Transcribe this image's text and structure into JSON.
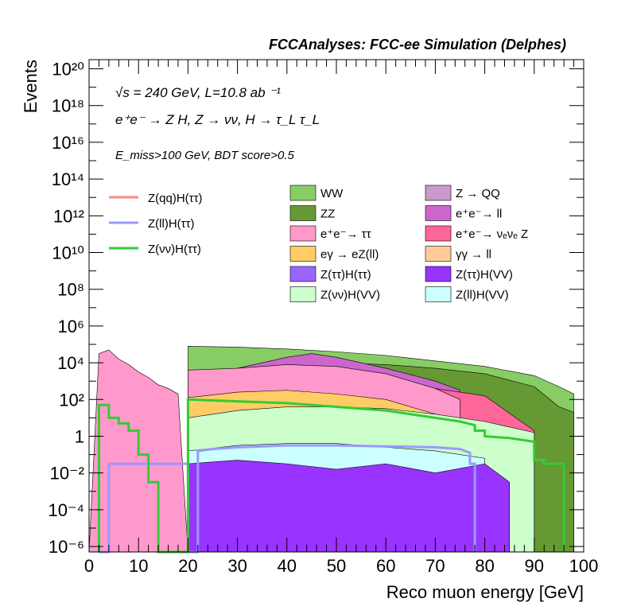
{
  "title": "FCCAnalyses: FCC-ee Simulation (Delphes)",
  "info": {
    "line1": "√s = 240 GeV, L=10.8 ab ⁻¹",
    "line2": "e⁺e⁻ → Z H, Z → νν, H → τ_L τ_L",
    "line3": "E_miss>100 GeV, BDT score>0.5"
  },
  "chart_data": {
    "type": "area",
    "xlabel": "Reco muon energy [GeV]",
    "ylabel": "Events",
    "xlim": [
      0,
      100
    ],
    "ylim_log10": [
      -6.3,
      20.5
    ],
    "log_y": true,
    "x_tick_labels": [
      "0",
      "10",
      "20",
      "30",
      "40",
      "50",
      "60",
      "70",
      "80",
      "90",
      "100"
    ],
    "y_tick_labels": [
      {
        "log": -6,
        "text": "10⁻⁶"
      },
      {
        "log": -4,
        "text": "10⁻⁴"
      },
      {
        "log": -2,
        "text": "10⁻²"
      },
      {
        "log": 0,
        "text": "1"
      },
      {
        "log": 2,
        "text": "10²"
      },
      {
        "log": 4,
        "text": "10⁴"
      },
      {
        "log": 6,
        "text": "10⁶"
      },
      {
        "log": 8,
        "text": "10⁸"
      },
      {
        "log": 10,
        "text": "10¹⁰"
      },
      {
        "log": 12,
        "text": "10¹²"
      },
      {
        "log": 14,
        "text": "10¹⁴"
      },
      {
        "log": 16,
        "text": "10¹⁶"
      },
      {
        "log": 18,
        "text": "10¹⁸"
      },
      {
        "log": 20,
        "text": "10²⁰"
      }
    ],
    "stack_bands": [
      {
        "name": "WW",
        "color": "#88cc66",
        "x": [
          20,
          30,
          40,
          50,
          60,
          70,
          80,
          90,
          95,
          98
        ],
        "top_log10": [
          4.9,
          4.85,
          4.75,
          4.6,
          4.4,
          4.1,
          3.8,
          3.3,
          2.7,
          2.3
        ]
      },
      {
        "name": "ZZ",
        "color": "#669933",
        "x": [
          20,
          30,
          40,
          50,
          60,
          70,
          80,
          90,
          95,
          98
        ],
        "top_log10": [
          3.3,
          3.7,
          3.9,
          4.0,
          3.9,
          3.7,
          3.4,
          2.7,
          1.6,
          1.3
        ]
      },
      {
        "name": "e⁺e⁻→ ll",
        "color": "#cc66cc",
        "x": [
          20,
          30,
          40,
          45,
          50,
          60,
          70,
          75
        ],
        "top_log10": [
          3.3,
          3.7,
          4.3,
          4.5,
          4.3,
          3.7,
          3.0,
          2.5
        ]
      },
      {
        "name": "e⁺e⁻→ νₑνₑ Z",
        "color": "#ff6699",
        "x": [
          20,
          30,
          40,
          50,
          60,
          70,
          80,
          90
        ],
        "top_log10": [
          2.6,
          2.8,
          2.9,
          2.9,
          2.8,
          2.6,
          2.2,
          0.3
        ]
      },
      {
        "name": "e⁺e⁻→ ττ",
        "color": "#ff99cc",
        "x": [
          20,
          30,
          40,
          50,
          60,
          70,
          75
        ],
        "top_log10": [
          3.6,
          3.7,
          3.9,
          3.8,
          3.4,
          2.6,
          2.0
        ]
      },
      {
        "name": "eγ → eZ(ll)",
        "color": "#ffcc66",
        "x": [
          20,
          30,
          40,
          50,
          60,
          70,
          72
        ],
        "top_log10": [
          2.1,
          2.4,
          2.5,
          2.3,
          2.0,
          1.2,
          1.0
        ]
      },
      {
        "name": "Z(νν)H(VV)",
        "color": "#ccffcc",
        "x": [
          20,
          30,
          40,
          50,
          60,
          70,
          80,
          90
        ],
        "top_log10": [
          1.0,
          1.4,
          1.6,
          1.6,
          1.5,
          1.2,
          0.8,
          0.2
        ]
      },
      {
        "name": "Z(ll)H(VV)",
        "color": "#ccffff",
        "x": [
          20,
          30,
          40,
          50,
          60,
          70,
          80
        ],
        "top_log10": [
          -0.8,
          -0.5,
          -0.4,
          -0.4,
          -0.6,
          -0.8,
          -1.2
        ]
      },
      {
        "name": "Z(ττ)H(VV)",
        "color": "#9933ff",
        "x": [
          20,
          30,
          40,
          50,
          60,
          70,
          80,
          85
        ],
        "top_log10": [
          -1.5,
          -1.3,
          -1.5,
          -1.8,
          -1.5,
          -2.0,
          -1.5,
          -2.5
        ]
      }
    ],
    "low_region": {
      "x": [
        0,
        2,
        4,
        6,
        8,
        10,
        12,
        14,
        16,
        18,
        20
      ],
      "top_log10": [
        -6.3,
        4.5,
        4.7,
        4.2,
        3.9,
        3.5,
        3.2,
        2.8,
        2.6,
        2.3,
        -6.3
      ]
    },
    "lines": [
      {
        "name": "Z(qq)H(ττ)",
        "color": "#ff8888",
        "x": [],
        "log10": []
      },
      {
        "name": "Z(ll)H(ττ)",
        "color": "#9999ff",
        "x": [
          2,
          4,
          4,
          20,
          20,
          22,
          22,
          25,
          30,
          35,
          40,
          50,
          60,
          70,
          75,
          77,
          77,
          78,
          78
        ],
        "log10": [
          -6.3,
          -6.3,
          -1.5,
          -1.5,
          -6.3,
          -6.3,
          -0.8,
          -0.7,
          -0.6,
          -0.55,
          -0.5,
          -0.5,
          -0.55,
          -0.6,
          -0.7,
          -0.9,
          -1.5,
          -1.5,
          -6.3
        ]
      },
      {
        "name": "Z(νν)H(ττ)",
        "color": "#33cc33",
        "x": [
          2,
          2,
          4,
          4,
          6,
          6,
          8,
          8,
          10,
          10,
          12,
          12,
          14,
          14,
          20,
          20,
          25,
          30,
          35,
          40,
          45,
          50,
          55,
          60,
          65,
          70,
          75,
          78,
          78,
          80,
          80,
          85,
          90,
          90,
          92,
          92,
          96,
          96
        ],
        "log10": [
          -6.3,
          1.7,
          1.7,
          1.0,
          1.0,
          0.7,
          0.7,
          0.3,
          0.3,
          -1.0,
          -1.0,
          -2.5,
          -2.5,
          -6.3,
          -6.3,
          2.0,
          1.95,
          1.9,
          1.85,
          1.8,
          1.7,
          1.6,
          1.5,
          1.4,
          1.2,
          1.0,
          0.8,
          0.6,
          0.3,
          0.3,
          0.0,
          -0.1,
          -0.3,
          -1.3,
          -1.3,
          -1.5,
          -1.5,
          -6.3
        ]
      }
    ],
    "legend": {
      "lines": [
        {
          "label": "Z(qq)H(ττ)",
          "color": "#ff8888"
        },
        {
          "label": "Z(ll)H(ττ)",
          "color": "#9999ff"
        },
        {
          "label": "Z(νν)H(ττ)",
          "color": "#33cc33"
        }
      ],
      "fills": [
        {
          "label": "WW",
          "color": "#88cc66"
        },
        {
          "label": "Z → QQ",
          "color": "#cc99cc"
        },
        {
          "label": "ZZ",
          "color": "#669933"
        },
        {
          "label": "e⁺e⁻→ ll",
          "color": "#cc66cc"
        },
        {
          "label": "e⁺e⁻→ ττ",
          "color": "#ff99cc"
        },
        {
          "label": "e⁺e⁻→ νₑνₑ Z",
          "color": "#ff6699"
        },
        {
          "label": "eγ → eZ(ll)",
          "color": "#ffcc66"
        },
        {
          "label": "γγ → ll",
          "color": "#ffcc99"
        },
        {
          "label": "Z(ττ)H(ττ)",
          "color": "#9966ff"
        },
        {
          "label": "Z(ττ)H(VV)",
          "color": "#9933ff"
        },
        {
          "label": "Z(νν)H(VV)",
          "color": "#ccffcc"
        },
        {
          "label": "Z(ll)H(VV)",
          "color": "#ccffff"
        }
      ]
    }
  }
}
